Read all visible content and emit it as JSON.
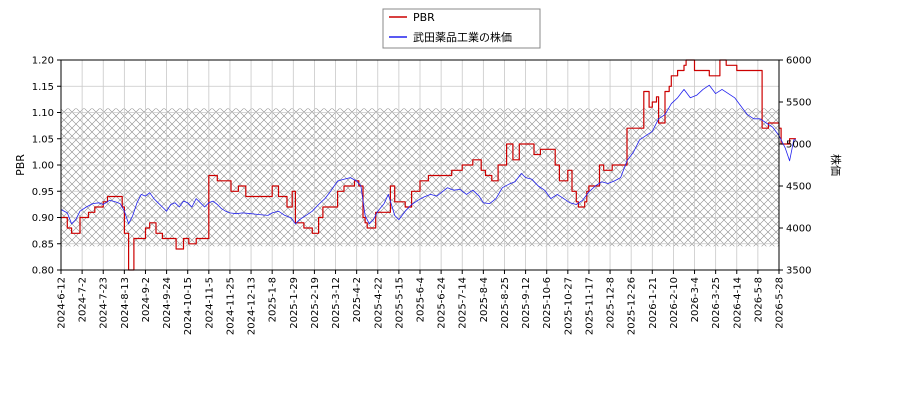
{
  "chart_data": {
    "type": "line",
    "xlabels": [
      "2024-6-12",
      "2024-7-2",
      "2024-7-23",
      "2024-8-13",
      "2024-9-2",
      "2024-9-24",
      "2024-10-15",
      "2024-11-5",
      "2024-11-25",
      "2024-12-13",
      "2025-1-8",
      "2025-1-29",
      "2025-2-19",
      "2025-3-12",
      "2025-4-2",
      "2025-4-22",
      "2025-5-15",
      "2025-6-4",
      "2025-6-24",
      "2025-7-14",
      "2025-8-4",
      "2025-8-25",
      "2025-9-12",
      "2025-10-6",
      "2025-10-27",
      "2025-11-17",
      "2025-12-8",
      "2025-12-26",
      "2026-1-21",
      "2026-2-10",
      "2026-3-4",
      "2026-3-25",
      "2026-4-14",
      "2026-5-8",
      "2026-5-28"
    ],
    "y_left": {
      "label": "PBR",
      "lim": [
        0.8,
        1.2
      ],
      "ticks": [
        "0.80",
        "0.85",
        "0.90",
        "0.95",
        "1.00",
        "1.05",
        "1.10",
        "1.15",
        "1.20"
      ]
    },
    "y_right": {
      "label": "株価",
      "lim": [
        3500,
        6000
      ],
      "ticks": [
        "3500",
        "4000",
        "4500",
        "5000",
        "5500",
        "6000"
      ]
    },
    "shaded_band": [
      0.845,
      1.108
    ],
    "grid": true,
    "legend_position": "top-center",
    "series": [
      {
        "name": "PBR",
        "axis": "left",
        "color": "#cc0000",
        "points": [
          [
            0,
            0.9
          ],
          [
            0.3,
            0.88
          ],
          [
            0.5,
            0.87
          ],
          [
            0.8,
            0.87
          ],
          [
            0.9,
            0.9
          ],
          [
            1.3,
            0.91
          ],
          [
            1.6,
            0.92
          ],
          [
            2.0,
            0.93
          ],
          [
            2.2,
            0.94
          ],
          [
            2.8,
            0.94
          ],
          [
            2.9,
            0.92
          ],
          [
            3.0,
            0.87
          ],
          [
            3.15,
            0.87
          ],
          [
            3.2,
            0.8
          ],
          [
            3.3,
            0.8
          ],
          [
            3.45,
            0.86
          ],
          [
            3.9,
            0.86
          ],
          [
            4.0,
            0.88
          ],
          [
            4.2,
            0.89
          ],
          [
            4.4,
            0.89
          ],
          [
            4.5,
            0.87
          ],
          [
            4.7,
            0.87
          ],
          [
            4.8,
            0.86
          ],
          [
            5.4,
            0.86
          ],
          [
            5.45,
            0.84
          ],
          [
            5.7,
            0.84
          ],
          [
            5.8,
            0.86
          ],
          [
            6.0,
            0.86
          ],
          [
            6.05,
            0.85
          ],
          [
            6.3,
            0.85
          ],
          [
            6.4,
            0.86
          ],
          [
            6.9,
            0.86
          ],
          [
            7.0,
            0.98
          ],
          [
            7.3,
            0.98
          ],
          [
            7.4,
            0.97
          ],
          [
            8.0,
            0.97
          ],
          [
            8.05,
            0.95
          ],
          [
            8.3,
            0.95
          ],
          [
            8.4,
            0.96
          ],
          [
            8.7,
            0.96
          ],
          [
            8.75,
            0.94
          ],
          [
            9.8,
            0.94
          ],
          [
            10.0,
            0.96
          ],
          [
            10.2,
            0.96
          ],
          [
            10.3,
            0.94
          ],
          [
            10.6,
            0.94
          ],
          [
            10.7,
            0.92
          ],
          [
            10.9,
            0.92
          ],
          [
            10.95,
            0.95
          ],
          [
            11.05,
            0.95
          ],
          [
            11.1,
            0.89
          ],
          [
            11.4,
            0.89
          ],
          [
            11.5,
            0.88
          ],
          [
            11.8,
            0.88
          ],
          [
            11.9,
            0.87
          ],
          [
            12.1,
            0.87
          ],
          [
            12.2,
            0.9
          ],
          [
            12.35,
            0.9
          ],
          [
            12.4,
            0.92
          ],
          [
            13.0,
            0.92
          ],
          [
            13.1,
            0.95
          ],
          [
            13.3,
            0.95
          ],
          [
            13.4,
            0.96
          ],
          [
            13.8,
            0.96
          ],
          [
            13.9,
            0.97
          ],
          [
            14.0,
            0.97
          ],
          [
            14.1,
            0.96
          ],
          [
            14.2,
            0.96
          ],
          [
            14.3,
            0.9
          ],
          [
            14.4,
            0.89
          ],
          [
            14.5,
            0.88
          ],
          [
            14.8,
            0.88
          ],
          [
            14.9,
            0.91
          ],
          [
            15.5,
            0.91
          ],
          [
            15.6,
            0.96
          ],
          [
            15.7,
            0.96
          ],
          [
            15.8,
            0.93
          ],
          [
            16.2,
            0.93
          ],
          [
            16.3,
            0.92
          ],
          [
            16.5,
            0.92
          ],
          [
            16.6,
            0.95
          ],
          [
            16.9,
            0.95
          ],
          [
            17.0,
            0.97
          ],
          [
            17.3,
            0.97
          ],
          [
            17.4,
            0.98
          ],
          [
            18.4,
            0.98
          ],
          [
            18.5,
            0.99
          ],
          [
            18.9,
            0.99
          ],
          [
            19.0,
            1.0
          ],
          [
            19.4,
            1.0
          ],
          [
            19.5,
            1.01
          ],
          [
            19.8,
            1.01
          ],
          [
            19.9,
            0.99
          ],
          [
            20.0,
            0.99
          ],
          [
            20.1,
            0.98
          ],
          [
            20.3,
            0.98
          ],
          [
            20.4,
            0.97
          ],
          [
            20.6,
            0.97
          ],
          [
            20.7,
            1.0
          ],
          [
            21.0,
            1.0
          ],
          [
            21.1,
            1.04
          ],
          [
            21.3,
            1.04
          ],
          [
            21.4,
            1.01
          ],
          [
            21.6,
            1.01
          ],
          [
            21.7,
            1.04
          ],
          [
            22.3,
            1.04
          ],
          [
            22.4,
            1.02
          ],
          [
            22.6,
            1.02
          ],
          [
            22.7,
            1.03
          ],
          [
            23.3,
            1.03
          ],
          [
            23.4,
            1.0
          ],
          [
            23.5,
            1.0
          ],
          [
            23.6,
            0.97
          ],
          [
            23.9,
            0.97
          ],
          [
            24.0,
            0.99
          ],
          [
            24.1,
            0.99
          ],
          [
            24.2,
            0.95
          ],
          [
            24.3,
            0.95
          ],
          [
            24.4,
            0.93
          ],
          [
            24.5,
            0.92
          ],
          [
            24.7,
            0.92
          ],
          [
            24.8,
            0.93
          ],
          [
            24.9,
            0.95
          ],
          [
            25.0,
            0.96
          ],
          [
            25.4,
            0.96
          ],
          [
            25.5,
            1.0
          ],
          [
            25.6,
            1.0
          ],
          [
            25.7,
            0.99
          ],
          [
            26.0,
            0.99
          ],
          [
            26.1,
            1.0
          ],
          [
            26.7,
            1.0
          ],
          [
            26.8,
            1.07
          ],
          [
            27.5,
            1.07
          ],
          [
            27.6,
            1.14
          ],
          [
            27.8,
            1.14
          ],
          [
            27.85,
            1.11
          ],
          [
            28.0,
            1.12
          ],
          [
            28.2,
            1.13
          ],
          [
            28.3,
            1.08
          ],
          [
            28.5,
            1.08
          ],
          [
            28.6,
            1.14
          ],
          [
            28.8,
            1.15
          ],
          [
            28.9,
            1.17
          ],
          [
            29.1,
            1.17
          ],
          [
            29.2,
            1.18
          ],
          [
            29.5,
            1.19
          ],
          [
            29.6,
            1.2
          ],
          [
            29.9,
            1.2
          ],
          [
            30.0,
            1.18
          ],
          [
            30.6,
            1.18
          ],
          [
            30.7,
            1.17
          ],
          [
            31.1,
            1.17
          ],
          [
            31.2,
            1.2
          ],
          [
            31.4,
            1.2
          ],
          [
            31.5,
            1.19
          ],
          [
            31.9,
            1.19
          ],
          [
            32.0,
            1.18
          ],
          [
            33.1,
            1.18
          ],
          [
            33.2,
            1.07
          ],
          [
            33.4,
            1.07
          ],
          [
            33.5,
            1.08
          ],
          [
            34.0,
            1.07
          ],
          [
            34.1,
            1.04
          ],
          [
            34.4,
            1.04
          ],
          [
            34.5,
            1.05
          ],
          [
            34.8,
            1.05
          ]
        ]
      },
      {
        "name": "武田薬品工業の株価",
        "axis": "right",
        "color": "#2222ee",
        "points": [
          [
            0,
            4220
          ],
          [
            0.3,
            4180
          ],
          [
            0.5,
            4050
          ],
          [
            0.7,
            4100
          ],
          [
            0.9,
            4200
          ],
          [
            1.2,
            4250
          ],
          [
            1.5,
            4290
          ],
          [
            1.8,
            4300
          ],
          [
            2.0,
            4280
          ],
          [
            2.3,
            4330
          ],
          [
            2.6,
            4310
          ],
          [
            2.8,
            4290
          ],
          [
            3.0,
            4200
          ],
          [
            3.2,
            4050
          ],
          [
            3.4,
            4150
          ],
          [
            3.6,
            4300
          ],
          [
            3.8,
            4400
          ],
          [
            4.0,
            4380
          ],
          [
            4.2,
            4420
          ],
          [
            4.4,
            4350
          ],
          [
            4.6,
            4300
          ],
          [
            4.8,
            4250
          ],
          [
            5.0,
            4200
          ],
          [
            5.2,
            4280
          ],
          [
            5.4,
            4300
          ],
          [
            5.6,
            4250
          ],
          [
            5.8,
            4320
          ],
          [
            6.0,
            4300
          ],
          [
            6.2,
            4250
          ],
          [
            6.4,
            4350
          ],
          [
            6.6,
            4300
          ],
          [
            6.8,
            4250
          ],
          [
            7.0,
            4300
          ],
          [
            7.2,
            4320
          ],
          [
            7.4,
            4280
          ],
          [
            7.6,
            4230
          ],
          [
            7.8,
            4200
          ],
          [
            8.0,
            4180
          ],
          [
            8.3,
            4170
          ],
          [
            8.6,
            4180
          ],
          [
            9.0,
            4170
          ],
          [
            9.4,
            4160
          ],
          [
            9.8,
            4150
          ],
          [
            10.0,
            4180
          ],
          [
            10.3,
            4200
          ],
          [
            10.6,
            4150
          ],
          [
            10.9,
            4120
          ],
          [
            11.1,
            4050
          ],
          [
            11.3,
            4100
          ],
          [
            11.6,
            4150
          ],
          [
            11.9,
            4200
          ],
          [
            12.2,
            4280
          ],
          [
            12.5,
            4350
          ],
          [
            12.8,
            4450
          ],
          [
            13.1,
            4560
          ],
          [
            13.4,
            4580
          ],
          [
            13.7,
            4600
          ],
          [
            14.0,
            4560
          ],
          [
            14.2,
            4500
          ],
          [
            14.4,
            4150
          ],
          [
            14.6,
            4050
          ],
          [
            14.8,
            4100
          ],
          [
            15.0,
            4200
          ],
          [
            15.3,
            4290
          ],
          [
            15.5,
            4400
          ],
          [
            15.8,
            4150
          ],
          [
            16.0,
            4100
          ],
          [
            16.3,
            4200
          ],
          [
            16.6,
            4280
          ],
          [
            16.9,
            4330
          ],
          [
            17.2,
            4370
          ],
          [
            17.5,
            4400
          ],
          [
            17.8,
            4380
          ],
          [
            18.0,
            4420
          ],
          [
            18.3,
            4480
          ],
          [
            18.6,
            4450
          ],
          [
            18.9,
            4460
          ],
          [
            19.2,
            4400
          ],
          [
            19.5,
            4450
          ],
          [
            19.8,
            4380
          ],
          [
            20.0,
            4300
          ],
          [
            20.3,
            4290
          ],
          [
            20.6,
            4350
          ],
          [
            20.9,
            4480
          ],
          [
            21.2,
            4520
          ],
          [
            21.5,
            4550
          ],
          [
            21.8,
            4650
          ],
          [
            22.0,
            4600
          ],
          [
            22.3,
            4580
          ],
          [
            22.6,
            4500
          ],
          [
            22.9,
            4450
          ],
          [
            23.2,
            4350
          ],
          [
            23.5,
            4400
          ],
          [
            23.8,
            4350
          ],
          [
            24.1,
            4300
          ],
          [
            24.4,
            4280
          ],
          [
            24.7,
            4330
          ],
          [
            25.0,
            4430
          ],
          [
            25.3,
            4500
          ],
          [
            25.6,
            4550
          ],
          [
            25.9,
            4530
          ],
          [
            26.2,
            4560
          ],
          [
            26.5,
            4600
          ],
          [
            26.8,
            4800
          ],
          [
            27.1,
            4900
          ],
          [
            27.4,
            5050
          ],
          [
            27.7,
            5100
          ],
          [
            28.0,
            5150
          ],
          [
            28.3,
            5300
          ],
          [
            28.6,
            5350
          ],
          [
            28.9,
            5480
          ],
          [
            29.2,
            5550
          ],
          [
            29.5,
            5650
          ],
          [
            29.8,
            5550
          ],
          [
            30.1,
            5580
          ],
          [
            30.4,
            5650
          ],
          [
            30.7,
            5700
          ],
          [
            31.0,
            5600
          ],
          [
            31.3,
            5650
          ],
          [
            31.6,
            5600
          ],
          [
            31.9,
            5550
          ],
          [
            32.2,
            5450
          ],
          [
            32.5,
            5350
          ],
          [
            32.8,
            5300
          ],
          [
            33.1,
            5300
          ],
          [
            33.4,
            5250
          ],
          [
            33.7,
            5200
          ],
          [
            34.0,
            5100
          ],
          [
            34.3,
            4950
          ],
          [
            34.5,
            4800
          ],
          [
            34.7,
            5050
          ],
          [
            34.8,
            5050
          ]
        ]
      }
    ]
  }
}
